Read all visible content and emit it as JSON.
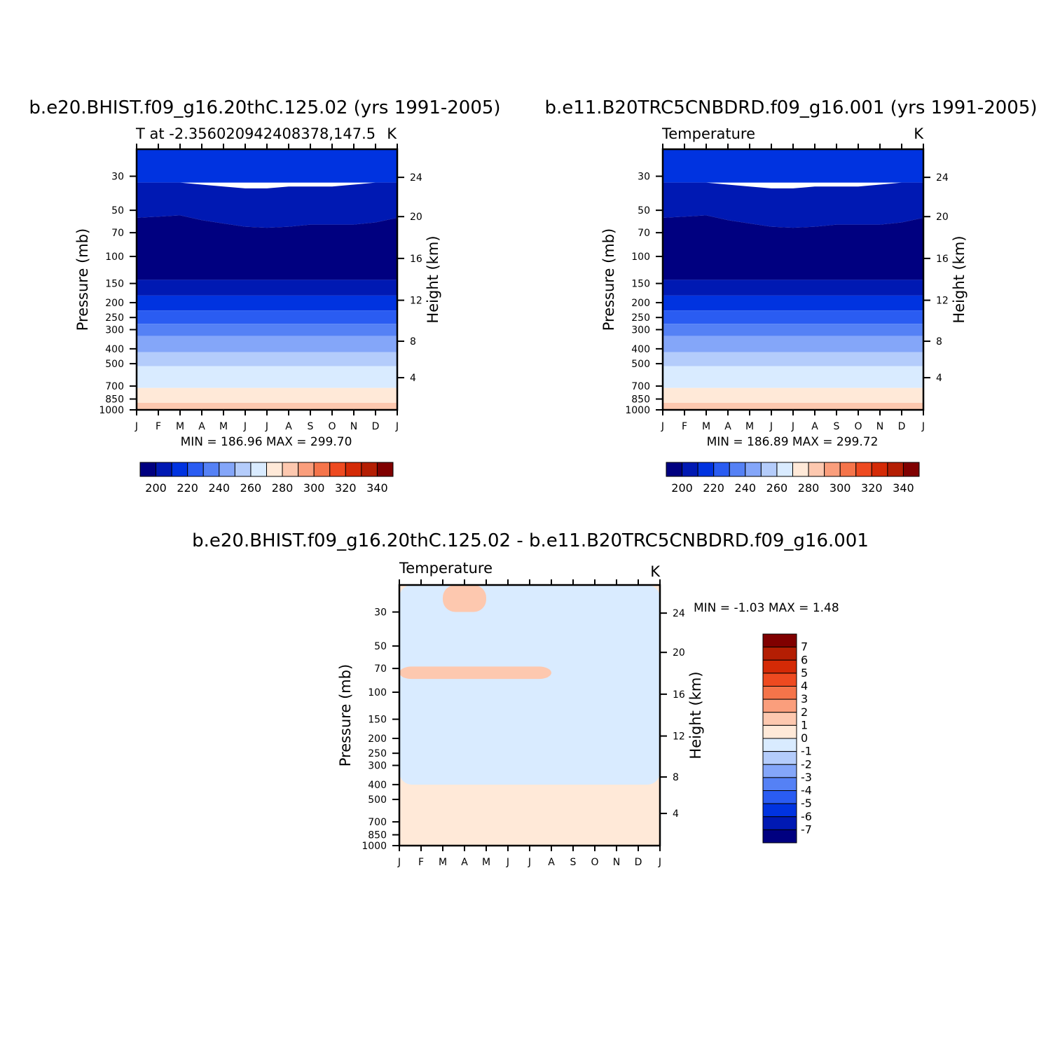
{
  "colors": {
    "abs": [
      "#000080",
      "#0019b3",
      "#0033e0",
      "#2a5cf2",
      "#5581f5",
      "#84a6f9",
      "#b4ccfb",
      "#d9ebff",
      "#ffe9d8",
      "#fdc8af",
      "#fa9e7c",
      "#f5744a",
      "#ee4a20",
      "#d42a06",
      "#b41e03",
      "#800000"
    ],
    "diff": [
      "#000080",
      "#0019b3",
      "#0033e0",
      "#2a5cf2",
      "#5581f5",
      "#84a6f9",
      "#b4ccfb",
      "#d9ebff",
      "#ffe9d8",
      "#fdc8af",
      "#fa9e7c",
      "#f5744a",
      "#ee4a20",
      "#d42a06",
      "#b41e03",
      "#800000"
    ]
  },
  "axes": {
    "months": [
      "J",
      "F",
      "M",
      "A",
      "M",
      "J",
      "J",
      "A",
      "S",
      "O",
      "N",
      "D",
      "J"
    ],
    "pressure_ticks": [
      "30",
      "50",
      "70",
      "100",
      "150",
      "200",
      "250",
      "300",
      "400",
      "500",
      "700",
      "850",
      "1000"
    ],
    "height_ticks": [
      "24",
      "20",
      "16",
      "12",
      "8",
      "4"
    ],
    "ylabel_left": "Pressure (mb)",
    "ylabel_right": "Height (km)"
  },
  "panels": {
    "p1": {
      "title": "b.e20.BHIST.f09_g16.20thC.125.02 (yrs 1991-2005)",
      "subtitle_left": "T at -2.356020942408378,147.5",
      "subtitle_right": "K",
      "minmax": "MIN =  186.96  MAX =  299.70"
    },
    "p2": {
      "title": "b.e11.B20TRC5CNBDRD.f09_g16.001 (yrs 1991-2005)",
      "subtitle_left": "Temperature",
      "subtitle_right": "K",
      "minmax": "MIN =  186.89  MAX =  299.72"
    },
    "p3": {
      "title": "b.e20.BHIST.f09_g16.20thC.125.02 - b.e11.B20TRC5CNBDRD.f09_g16.001",
      "subtitle_left": "Temperature",
      "subtitle_right": "K",
      "minmax": "MIN =   -1.03  MAX =     1.48"
    }
  },
  "colorbars": {
    "abs_labels": [
      "200",
      "220",
      "240",
      "260",
      "280",
      "300",
      "320",
      "340"
    ],
    "diff_labels": [
      "7",
      "6",
      "5",
      "4",
      "3",
      "2",
      "1",
      "0",
      "-1",
      "-2",
      "-3",
      "-4",
      "-5",
      "-6",
      "-7"
    ]
  },
  "chart_data": [
    {
      "type": "heatmap",
      "title": "b.e20.BHIST.f09_g16.20thC.125.02 (yrs 1991-2005)",
      "subtitle": "T at -2.356020942408378,147.5",
      "units": "K",
      "xlabel": "",
      "ylabel": "Pressure (mb)",
      "ylabel_right": "Height (km)",
      "x": [
        "J",
        "F",
        "M",
        "A",
        "M",
        "J",
        "J",
        "A",
        "S",
        "O",
        "N",
        "D",
        "J"
      ],
      "y_scale": "log",
      "ylim": [
        1000,
        20
      ],
      "contour_levels": [
        200,
        210,
        220,
        230,
        240,
        250,
        260,
        270,
        280,
        290,
        300,
        310,
        320,
        330,
        340
      ],
      "bands": [
        {
          "label": ">210",
          "bottom_hPa": 33,
          "top_hPa": 20
        },
        {
          "label": "200-210",
          "bottom_hPa": [
            56,
            55,
            54,
            58,
            61,
            64,
            65,
            64,
            62,
            62,
            62,
            60,
            56
          ],
          "top_hPa": [
            33,
            33,
            33,
            34,
            35,
            36,
            36,
            35,
            35,
            35,
            34,
            33,
            33
          ]
        },
        {
          "label": "<200",
          "bottom_hPa": 142,
          "top_hPa": [
            56,
            55,
            54,
            58,
            61,
            64,
            65,
            64,
            62,
            62,
            62,
            60,
            56
          ]
        },
        {
          "label": "200-210",
          "bottom_hPa": 180,
          "top_hPa": 142
        },
        {
          "label": "210-220",
          "bottom_hPa": 225,
          "top_hPa": 180
        },
        {
          "label": "220-230",
          "bottom_hPa": 275,
          "top_hPa": 225
        },
        {
          "label": "230-240",
          "bottom_hPa": 330,
          "top_hPa": 275
        },
        {
          "label": "240-250",
          "bottom_hPa": 420,
          "top_hPa": 330
        },
        {
          "label": "250-260",
          "bottom_hPa": 520,
          "top_hPa": 420
        },
        {
          "label": "260-270",
          "bottom_hPa": 720,
          "top_hPa": 520
        },
        {
          "label": "270-280",
          "bottom_hPa": 900,
          "top_hPa": 720
        },
        {
          "label": "280-290",
          "bottom_hPa": 1000,
          "top_hPa": 900
        }
      ],
      "min": 186.96,
      "max": 299.7
    },
    {
      "type": "heatmap",
      "title": "b.e11.B20TRC5CNBDRD.f09_g16.001 (yrs 1991-2005)",
      "subtitle": "Temperature",
      "units": "K",
      "xlabel": "",
      "ylabel": "Pressure (mb)",
      "ylabel_right": "Height (km)",
      "x": [
        "J",
        "F",
        "M",
        "A",
        "M",
        "J",
        "J",
        "A",
        "S",
        "O",
        "N",
        "D",
        "J"
      ],
      "y_scale": "log",
      "ylim": [
        1000,
        20
      ],
      "contour_levels": [
        200,
        210,
        220,
        230,
        240,
        250,
        260,
        270,
        280,
        290,
        300,
        310,
        320,
        330,
        340
      ],
      "bands": [
        {
          "label": ">210",
          "bottom_hPa": 33,
          "top_hPa": 20
        },
        {
          "label": "200-210",
          "bottom_hPa": [
            56,
            55,
            54,
            58,
            61,
            64,
            65,
            64,
            62,
            62,
            62,
            60,
            56
          ],
          "top_hPa": [
            33,
            33,
            33,
            34,
            35,
            36,
            36,
            35,
            35,
            35,
            34,
            33,
            33
          ]
        },
        {
          "label": "<200",
          "bottom_hPa": 142,
          "top_hPa": [
            56,
            55,
            54,
            58,
            61,
            64,
            65,
            64,
            62,
            62,
            62,
            60,
            56
          ]
        },
        {
          "label": "200-210",
          "bottom_hPa": 180,
          "top_hPa": 142
        },
        {
          "label": "210-220",
          "bottom_hPa": 225,
          "top_hPa": 180
        },
        {
          "label": "220-230",
          "bottom_hPa": 275,
          "top_hPa": 225
        },
        {
          "label": "230-240",
          "bottom_hPa": 330,
          "top_hPa": 275
        },
        {
          "label": "240-250",
          "bottom_hPa": 420,
          "top_hPa": 330
        },
        {
          "label": "250-260",
          "bottom_hPa": 520,
          "top_hPa": 420
        },
        {
          "label": "260-270",
          "bottom_hPa": 720,
          "top_hPa": 520
        },
        {
          "label": "270-280",
          "bottom_hPa": 900,
          "top_hPa": 720
        },
        {
          "label": "280-290",
          "bottom_hPa": 1000,
          "top_hPa": 900
        }
      ],
      "min": 186.89,
      "max": 299.72
    },
    {
      "type": "heatmap",
      "title": "b.e20.BHIST.f09_g16.20thC.125.02 - b.e11.B20TRC5CNBDRD.f09_g16.001",
      "subtitle": "Temperature",
      "units": "K",
      "xlabel": "",
      "ylabel": "Pressure (mb)",
      "ylabel_right": "Height (km)",
      "x": [
        "J",
        "F",
        "M",
        "A",
        "M",
        "J",
        "J",
        "A",
        "S",
        "O",
        "N",
        "D",
        "J"
      ],
      "y_scale": "log",
      "ylim": [
        1000,
        20
      ],
      "contour_levels": [
        -7,
        -6,
        -5,
        -4,
        -3,
        -2,
        -1,
        0,
        1,
        2,
        3,
        4,
        5,
        6,
        7
      ],
      "regions": [
        {
          "label": "0-1",
          "description": "background"
        },
        {
          "label": "-1-0",
          "month_range": [
            "J",
            "M"
          ],
          "hPa_range": [
            50,
            110
          ]
        },
        {
          "label": "-1-0",
          "month_range": [
            "J",
            "J"
          ],
          "hPa_range": [
            95,
            400
          ]
        },
        {
          "label": "-1-0",
          "month_range": [
            "J",
            "J"
          ],
          "hPa_range": [
            20,
            400
          ]
        },
        {
          "label": "-1-0",
          "month_range": [
            "N",
            "J"
          ],
          "hPa_range": [
            60,
            370
          ]
        },
        {
          "label": "1-2",
          "month_range": [
            "M",
            "M"
          ],
          "hPa_range": [
            20,
            30
          ]
        },
        {
          "label": "1-2",
          "month_range": [
            "J",
            "A"
          ],
          "hPa_range": [
            68,
            82
          ]
        }
      ],
      "min": -1.03,
      "max": 1.48
    }
  ]
}
